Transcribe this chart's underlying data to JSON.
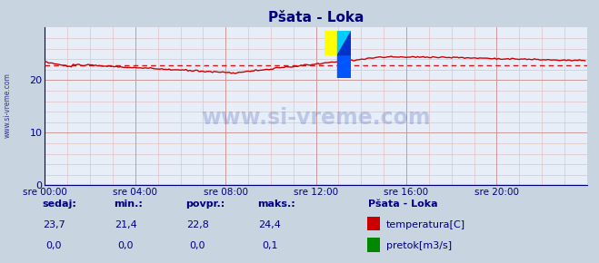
{
  "title": "Pšata - Loka",
  "title_color": "#000080",
  "bg_color": "#c8d4e0",
  "plot_bg_color": "#e8eef8",
  "xmin": 0,
  "xmax": 288,
  "ymin": 0,
  "ymax": 30,
  "yticks": [
    0,
    10,
    20
  ],
  "xtick_labels": [
    "sre 00:00",
    "sre 04:00",
    "sre 08:00",
    "sre 12:00",
    "sre 16:00",
    "sre 20:00"
  ],
  "xtick_positions": [
    0,
    48,
    96,
    144,
    192,
    240
  ],
  "temp_color": "#cc0000",
  "flow_color": "#008800",
  "avg_color": "#cc0000",
  "avg_value": 22.8,
  "min_value": 21.4,
  "max_value": 24.4,
  "current_value": 23.7,
  "watermark_text": "www.si-vreme.com",
  "watermark_color": "#2244aa",
  "watermark_alpha": 0.22,
  "footer_label_color": "#000080",
  "legend_title": "Pšata - Loka",
  "legend_temp_label": "temperatura[C]",
  "legend_flow_label": "pretok[m3/s]",
  "stat_labels": [
    "sedaj:",
    "min.:",
    "povpr.:",
    "maks.:"
  ],
  "stat_temp": [
    "23,7",
    "21,4",
    "22,8",
    "24,4"
  ],
  "stat_flow": [
    "0,0",
    "0,0",
    "0,0",
    "0,1"
  ]
}
